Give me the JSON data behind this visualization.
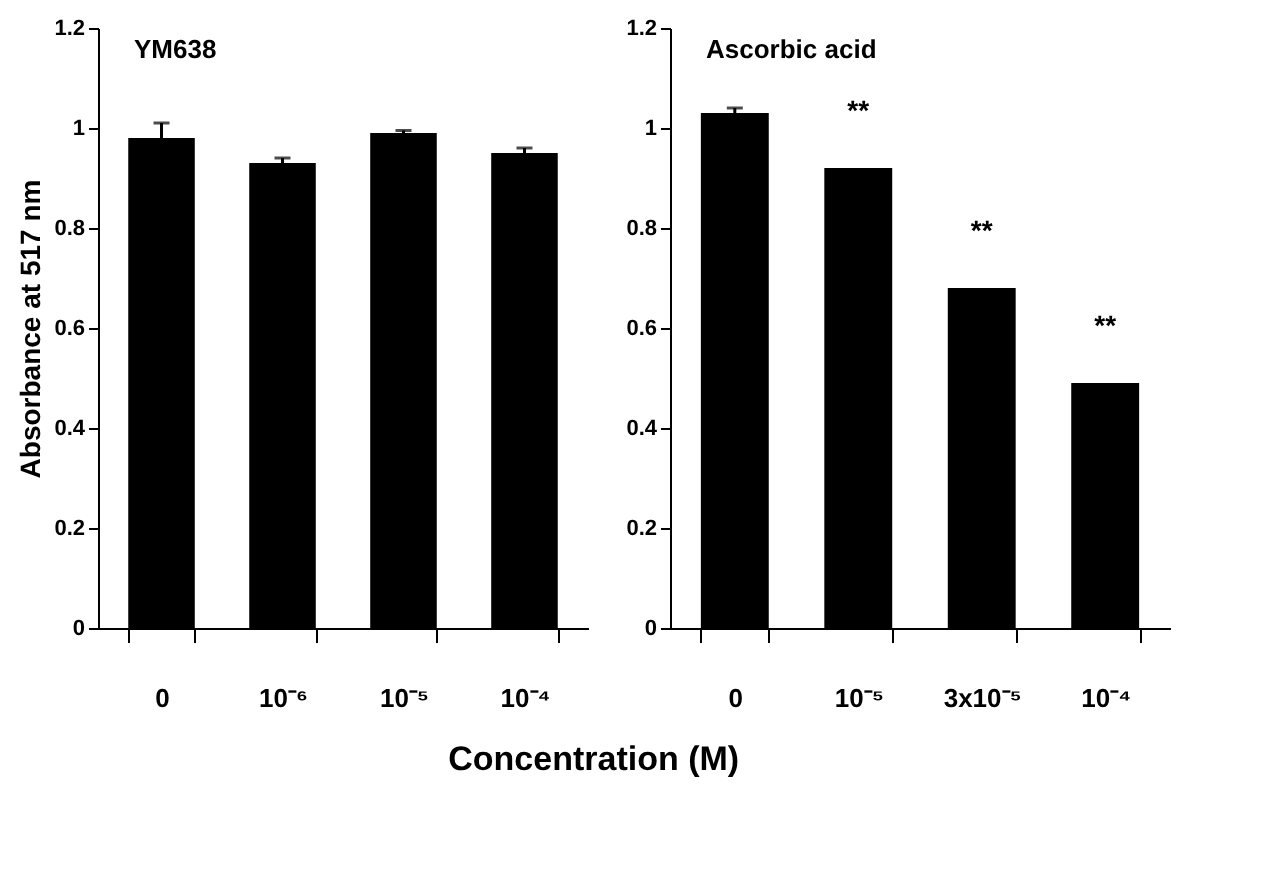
{
  "chart_data": [
    {
      "type": "bar",
      "title": "YM638",
      "ylabel": "Absorbance at 517 nm",
      "categories": [
        "0",
        "10⁻⁶",
        "10⁻⁵",
        "10⁻⁴"
      ],
      "values": [
        0.98,
        0.93,
        0.99,
        0.95
      ],
      "errors": [
        0.03,
        0.01,
        0.005,
        0.01
      ],
      "color": "#000000",
      "ylim": [
        0,
        1.2
      ],
      "yticks": [
        0,
        0.2,
        0.4,
        0.6,
        0.8,
        1,
        1.2
      ],
      "grid": false
    },
    {
      "type": "bar",
      "title": "Ascorbic acid",
      "xlabel": "Concentration  (M)",
      "categories": [
        "0",
        "10⁻⁵",
        "3x10⁻⁵",
        "10⁻⁴"
      ],
      "values": [
        1.03,
        0.92,
        0.68,
        0.49
      ],
      "errors": [
        0.01,
        null,
        null,
        null
      ],
      "color": "#000000",
      "ylim": [
        0,
        1.2
      ],
      "yticks": [
        0,
        0.2,
        0.4,
        0.6,
        0.8,
        1,
        1.2
      ],
      "grid": false,
      "annotations": [
        {
          "text": "**",
          "x": "10⁻⁵",
          "y": 0.92
        },
        {
          "text": "**",
          "x": "3x10⁻⁵",
          "y": 0.68
        },
        {
          "text": "**",
          "x": "10⁻⁴",
          "y": 0.49
        }
      ]
    }
  ]
}
